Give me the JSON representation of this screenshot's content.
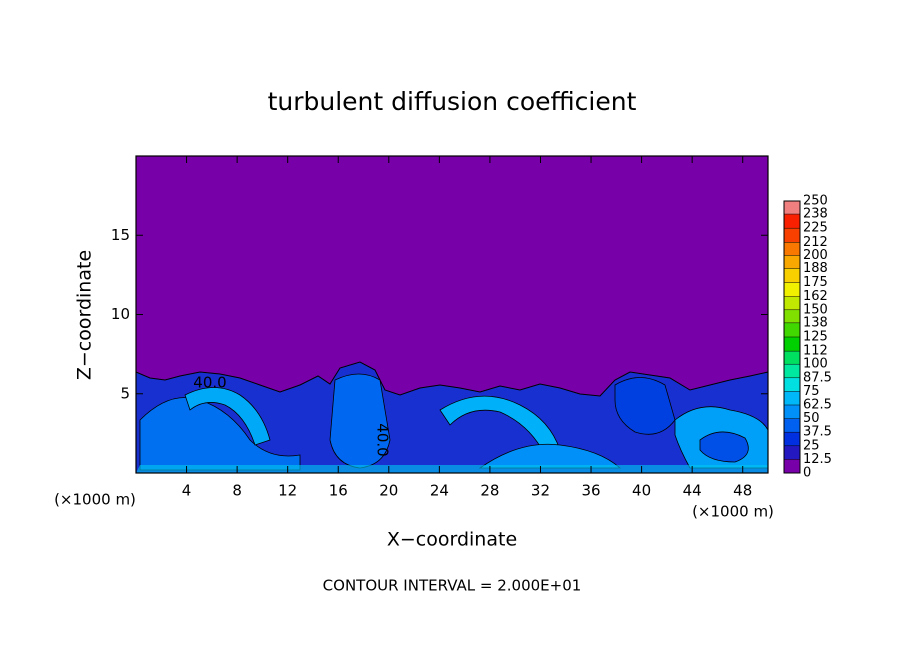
{
  "chart_data": {
    "type": "contour",
    "title": "turbulent diffusion coefficient",
    "x_label": "X−coordinate",
    "y_label": "Z−coordinate",
    "x_unit": "(×1000 m)",
    "y_unit": "(×1000 m)",
    "footer": "CONTOUR INTERVAL = 2.000E+01",
    "contour_labels": [
      "40.0",
      "40.0"
    ],
    "xlim": [
      0,
      50
    ],
    "ylim": [
      0,
      20
    ],
    "xticks": [
      4,
      8,
      12,
      16,
      20,
      24,
      28,
      32,
      36,
      40,
      44,
      48
    ],
    "yticks": [
      5,
      10,
      15
    ],
    "field_color": "#7800a8",
    "colorbar": {
      "ticks": [
        0,
        12.5,
        25,
        37.5,
        50,
        62.5,
        75,
        87.5,
        100,
        112,
        125,
        138,
        150,
        162,
        175,
        188,
        200,
        212,
        225,
        238,
        250
      ],
      "colors": [
        "#7800a8",
        "#2418c0",
        "#0030e0",
        "#0060f0",
        "#0090f8",
        "#00b8f8",
        "#00e0e0",
        "#00e8a0",
        "#00e060",
        "#00d000",
        "#40d800",
        "#80e000",
        "#c0e800",
        "#f0f000",
        "#f8d000",
        "#f8a800",
        "#f87800",
        "#f84000",
        "#f82000",
        "#f08080"
      ]
    }
  }
}
